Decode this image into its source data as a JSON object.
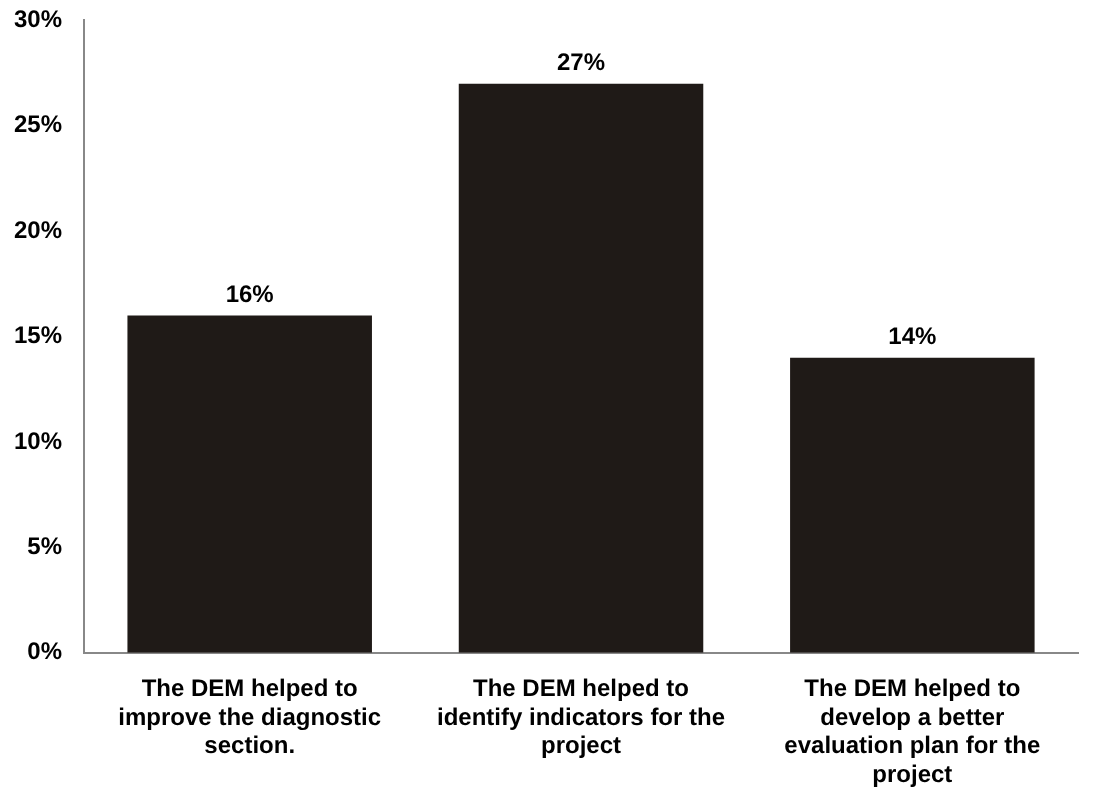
{
  "chart_data": {
    "type": "bar",
    "categories": [
      "The DEM helped to improve the diagnostic section.",
      "The DEM helped to identify indicators for the project",
      "The DEM helped to develop a better evaluation plan for the project"
    ],
    "values": [
      16,
      27,
      14
    ],
    "color": "#1f1a17",
    "ylim": [
      0,
      30
    ],
    "yticks": [
      {
        "value": 0,
        "label": "0%"
      },
      {
        "value": 5,
        "label": "5%"
      },
      {
        "value": 10,
        "label": "10%"
      },
      {
        "value": 15,
        "label": "15%"
      },
      {
        "value": 20,
        "label": "20%"
      },
      {
        "value": 25,
        "label": "25%"
      },
      {
        "value": 30,
        "label": "30%"
      }
    ],
    "value_labels": [
      "16%",
      "27%",
      "14%"
    ],
    "grid": false,
    "legend": false
  }
}
